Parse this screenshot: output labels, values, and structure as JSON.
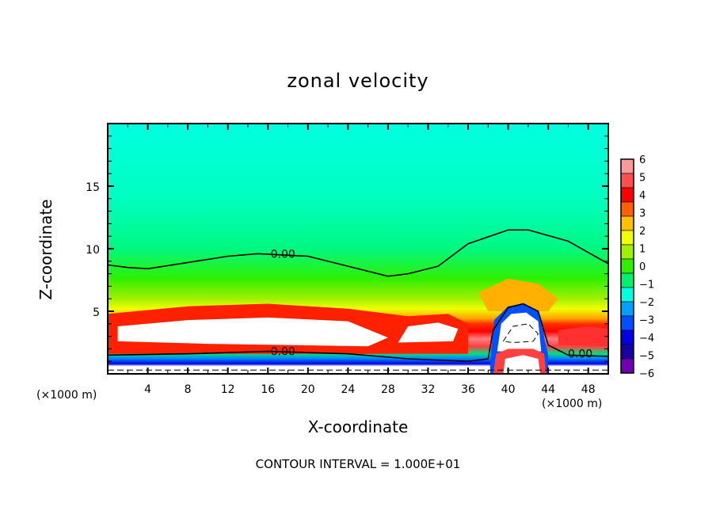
{
  "chart_data": {
    "type": "heatmap",
    "title": "zonal velocity",
    "xlabel": "X-coordinate",
    "ylabel": "Z-coordinate",
    "x_unit_left": "(×1000 m)",
    "x_unit_right": "(×1000 m)",
    "xlim": [
      0,
      50
    ],
    "ylim": [
      0,
      20
    ],
    "x_ticks": [
      4,
      8,
      12,
      16,
      20,
      24,
      28,
      32,
      36,
      40,
      44,
      48
    ],
    "x_tick_labels": [
      "4",
      "8",
      "12",
      "16",
      "20",
      "24",
      "28",
      "32",
      "36",
      "40",
      "44",
      "48"
    ],
    "y_ticks": [
      5,
      10,
      15
    ],
    "y_tick_labels": [
      "5",
      "10",
      "15"
    ],
    "colorbar": {
      "levels": [
        6,
        5,
        4,
        3,
        2,
        1,
        0,
        -1,
        -2,
        -3,
        -4,
        -5,
        -6
      ],
      "labels": [
        "6",
        "5",
        "4",
        "3",
        "2",
        "1",
        "0",
        "−1",
        "−2",
        "−3",
        "−4",
        "−5",
        "−6"
      ],
      "colors": [
        "#ff9a9a",
        "#ff5050",
        "#ff0000",
        "#ff6000",
        "#ffc000",
        "#f0ff00",
        "#a0f000",
        "#30f000",
        "#00f070",
        "#00ffe0",
        "#00a0ff",
        "#0050ff",
        "#0000e0",
        "#1a00a0",
        "#7000b0"
      ]
    },
    "contours": [
      {
        "level": 0.0,
        "label": "0.00",
        "style": "solid",
        "name": "upper-zero",
        "points": [
          [
            0,
            8.7
          ],
          [
            2,
            8.5
          ],
          [
            4,
            8.4
          ],
          [
            8,
            8.9
          ],
          [
            12,
            9.4
          ],
          [
            15,
            9.6
          ],
          [
            20,
            9.4
          ],
          [
            24,
            8.6
          ],
          [
            28,
            7.8
          ],
          [
            30,
            8.0
          ],
          [
            33,
            8.6
          ],
          [
            36,
            10.4
          ],
          [
            40,
            11.5
          ],
          [
            42,
            11.5
          ],
          [
            46,
            10.6
          ],
          [
            50,
            8.8
          ]
        ]
      },
      {
        "level": 0.0,
        "label": "0.00",
        "style": "solid",
        "name": "lower-zero",
        "points": [
          [
            0,
            1.5
          ],
          [
            8,
            1.6
          ],
          [
            16,
            1.8
          ],
          [
            24,
            1.6
          ],
          [
            30,
            1.2
          ],
          [
            36,
            1.0
          ],
          [
            38,
            1.2
          ],
          [
            38.5,
            3.5
          ],
          [
            40,
            5.3
          ],
          [
            41.5,
            5.6
          ],
          [
            43,
            5.0
          ],
          [
            44,
            2.3
          ],
          [
            46,
            1.5
          ],
          [
            50,
            1.4
          ]
        ]
      },
      {
        "level": -10.0,
        "label": "",
        "style": "dashed",
        "name": "negative-core",
        "points": [
          [
            39.5,
            2.6
          ],
          [
            40.5,
            3.8
          ],
          [
            42,
            4.0
          ],
          [
            43,
            3.2
          ],
          [
            42.5,
            2.6
          ],
          [
            40.5,
            2.5
          ],
          [
            39.5,
            2.6
          ]
        ]
      }
    ],
    "contour_interval": "1.000E+01",
    "footer": "CONTOUR INTERVAL = 1.000E+01"
  }
}
